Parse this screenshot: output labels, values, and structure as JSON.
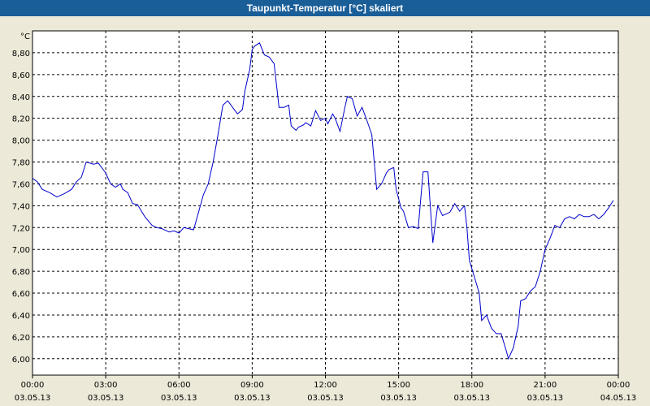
{
  "window": {
    "title": "Taupunkt-Temperatur [°C] skaliert"
  },
  "colors": {
    "title_bar": "#1a5e98",
    "background": "#ece9d8",
    "plot_area": "#ffffff",
    "grid": "#000000",
    "series": "#0000cc"
  },
  "chart_data": {
    "type": "line",
    "title": "Taupunkt-Temperatur [°C] skaliert",
    "unit_label": "°C",
    "xlabel": "",
    "ylabel": "",
    "grid": true,
    "ylim": [
      5.85,
      9.0
    ],
    "xlim": [
      "03.05.13 00:00",
      "04.05.13 00:00"
    ],
    "y_ticks": [
      {
        "value": 6.0,
        "label": "6,00"
      },
      {
        "value": 6.2,
        "label": "6,20"
      },
      {
        "value": 6.4,
        "label": "6,40"
      },
      {
        "value": 6.6,
        "label": "6,60"
      },
      {
        "value": 6.8,
        "label": "6,80"
      },
      {
        "value": 7.0,
        "label": "7,00"
      },
      {
        "value": 7.2,
        "label": "7,20"
      },
      {
        "value": 7.4,
        "label": "7,40"
      },
      {
        "value": 7.6,
        "label": "7,60"
      },
      {
        "value": 7.8,
        "label": "7,80"
      },
      {
        "value": 8.0,
        "label": "8,00"
      },
      {
        "value": 8.2,
        "label": "8,20"
      },
      {
        "value": 8.4,
        "label": "8,40"
      },
      {
        "value": 8.6,
        "label": "8,60"
      },
      {
        "value": 8.8,
        "label": "8,80"
      }
    ],
    "x_ticks": [
      {
        "hour": 0,
        "time": "00:00",
        "date": "03.05.13"
      },
      {
        "hour": 3,
        "time": "03:00",
        "date": "03.05.13"
      },
      {
        "hour": 6,
        "time": "06:00",
        "date": "03.05.13"
      },
      {
        "hour": 9,
        "time": "09:00",
        "date": "03.05.13"
      },
      {
        "hour": 12,
        "time": "12:00",
        "date": "03.05.13"
      },
      {
        "hour": 15,
        "time": "15:00",
        "date": "03.05.13"
      },
      {
        "hour": 18,
        "time": "18:00",
        "date": "03.05.13"
      },
      {
        "hour": 21,
        "time": "21:00",
        "date": "03.05.13"
      },
      {
        "hour": 24,
        "time": "00:00",
        "date": "04.05.13"
      }
    ],
    "series": [
      {
        "x_unit": "hours after 03.05.13 00:00",
        "x": [
          0,
          0.2,
          0.4,
          0.7,
          1.0,
          1.3,
          1.6,
          1.8,
          2.0,
          2.2,
          2.5,
          2.7,
          2.8,
          3.0,
          3.2,
          3.4,
          3.6,
          3.7,
          3.9,
          4.1,
          4.3,
          4.6,
          4.9,
          5.1,
          5.3,
          5.6,
          5.8,
          6.0,
          6.2,
          6.4,
          6.6,
          6.9,
          7.0,
          7.2,
          7.4,
          7.6,
          7.8,
          8.0,
          8.3,
          8.4,
          8.6,
          8.7,
          8.9,
          9.0,
          9.1,
          9.3,
          9.5,
          9.7,
          9.9,
          10.1,
          10.3,
          10.5,
          10.6,
          10.8,
          10.9,
          11.1,
          11.2,
          11.4,
          11.6,
          11.8,
          12.0,
          12.1,
          12.3,
          12.4,
          12.6,
          12.8,
          12.9,
          13.1,
          13.3,
          13.5,
          13.7,
          13.9,
          14.1,
          14.3,
          14.5,
          14.6,
          14.8,
          14.9,
          15.1,
          15.2,
          15.4,
          15.6,
          15.8,
          16.0,
          16.2,
          16.4,
          16.6,
          16.8,
          17.1,
          17.3,
          17.5,
          17.7,
          17.8,
          17.9,
          18.1,
          18.3,
          18.4,
          18.6,
          18.8,
          19.0,
          19.2,
          19.4,
          19.5,
          19.7,
          19.9,
          20.0,
          20.2,
          20.4,
          20.6,
          20.8,
          20.9,
          21.0,
          21.2,
          21.4,
          21.6,
          21.8,
          22.0,
          22.2,
          22.4,
          22.6,
          22.8,
          23.0,
          23.2,
          23.4,
          23.6,
          23.8
        ],
        "y": [
          7.65,
          7.62,
          7.55,
          7.52,
          7.48,
          7.51,
          7.55,
          7.62,
          7.66,
          7.8,
          7.78,
          7.79,
          7.76,
          7.7,
          7.6,
          7.57,
          7.6,
          7.55,
          7.52,
          7.42,
          7.41,
          7.3,
          7.22,
          7.2,
          7.19,
          7.16,
          7.17,
          7.15,
          7.2,
          7.19,
          7.18,
          7.42,
          7.5,
          7.6,
          7.8,
          8.05,
          8.32,
          8.36,
          8.27,
          8.24,
          8.28,
          8.45,
          8.65,
          8.83,
          8.86,
          8.89,
          8.78,
          8.76,
          8.7,
          8.3,
          8.3,
          8.32,
          8.13,
          8.09,
          8.12,
          8.14,
          8.16,
          8.13,
          8.27,
          8.18,
          8.2,
          8.15,
          8.24,
          8.2,
          8.08,
          8.3,
          8.4,
          8.38,
          8.22,
          8.3,
          8.18,
          8.05,
          7.55,
          7.6,
          7.7,
          7.73,
          7.75,
          7.55,
          7.38,
          7.35,
          7.2,
          7.21,
          7.19,
          7.71,
          7.71,
          7.06,
          7.4,
          7.31,
          7.34,
          7.42,
          7.35,
          7.4,
          7.2,
          6.9,
          6.75,
          6.6,
          6.35,
          6.4,
          6.28,
          6.23,
          6.23,
          6.08,
          6.0,
          6.1,
          6.3,
          6.53,
          6.55,
          6.62,
          6.66,
          6.8,
          6.9,
          7.0,
          7.1,
          7.22,
          7.2,
          7.28,
          7.3,
          7.28,
          7.32,
          7.3,
          7.3,
          7.32,
          7.28,
          7.32,
          7.38,
          7.45
        ]
      }
    ]
  }
}
